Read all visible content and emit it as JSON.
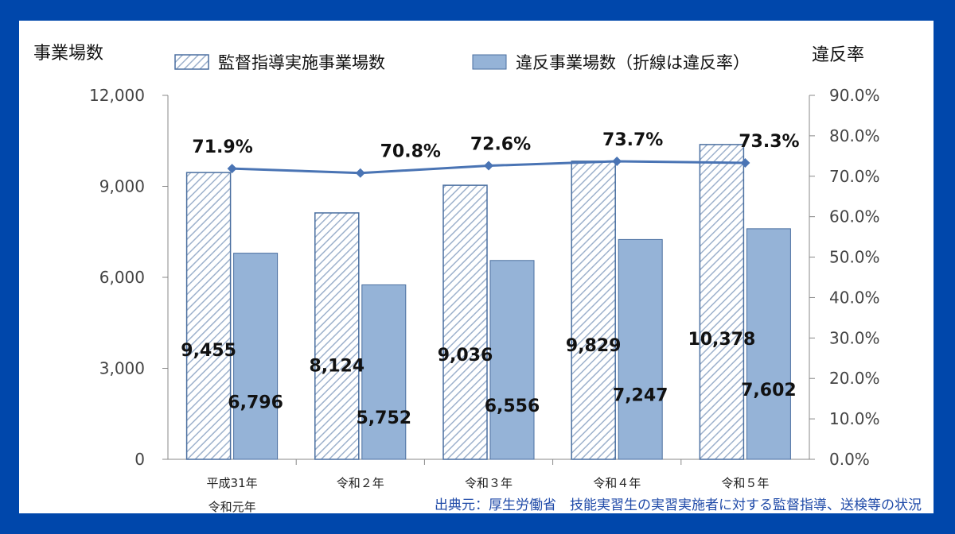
{
  "chart_data": {
    "type": "bar",
    "categories": [
      [
        "平成31年",
        "令和元年"
      ],
      [
        "令和２年"
      ],
      [
        "令和３年"
      ],
      [
        "令和４年"
      ],
      [
        "令和５年"
      ]
    ],
    "series": [
      {
        "name": "監督指導実施事業場数",
        "type": "bar",
        "values": [
          9455,
          8124,
          9036,
          9829,
          10378
        ],
        "labels": [
          "9,455",
          "8,124",
          "9,036",
          "9,829",
          "10,378"
        ],
        "color": "#4a6fa0",
        "pattern": "hatched"
      },
      {
        "name": "違反事業場数（折線は違反率）",
        "type": "bar",
        "values": [
          6796,
          5752,
          6556,
          7247,
          7602
        ],
        "labels": [
          "6,796",
          "5,752",
          "6,556",
          "7,247",
          "7,602"
        ],
        "color": "#95b3d7"
      },
      {
        "type": "line",
        "axis": "right",
        "values": [
          71.9,
          70.8,
          72.6,
          73.7,
          73.3
        ],
        "labels": [
          "71.9%",
          "70.8%",
          "72.6%",
          "73.7%",
          "73.3%"
        ],
        "color": "#4a74b4"
      }
    ],
    "ylabel": "事業場数",
    "ylabel_right": "違反率",
    "ylim": [
      0,
      12000
    ],
    "ylim_right": [
      0,
      90
    ],
    "yticks": [
      "0",
      "3,000",
      "6,000",
      "9,000",
      "12,000"
    ],
    "yticks_right": [
      "0.0%",
      "10.0%",
      "20.0%",
      "30.0%",
      "40.0%",
      "50.0%",
      "60.0%",
      "70.0%",
      "80.0%",
      "90.0%"
    ],
    "grid": false,
    "legend": "top"
  },
  "source": "出典元：厚生労働省　技能実習生の実習実施者に対する監督指導、送検等の状況"
}
